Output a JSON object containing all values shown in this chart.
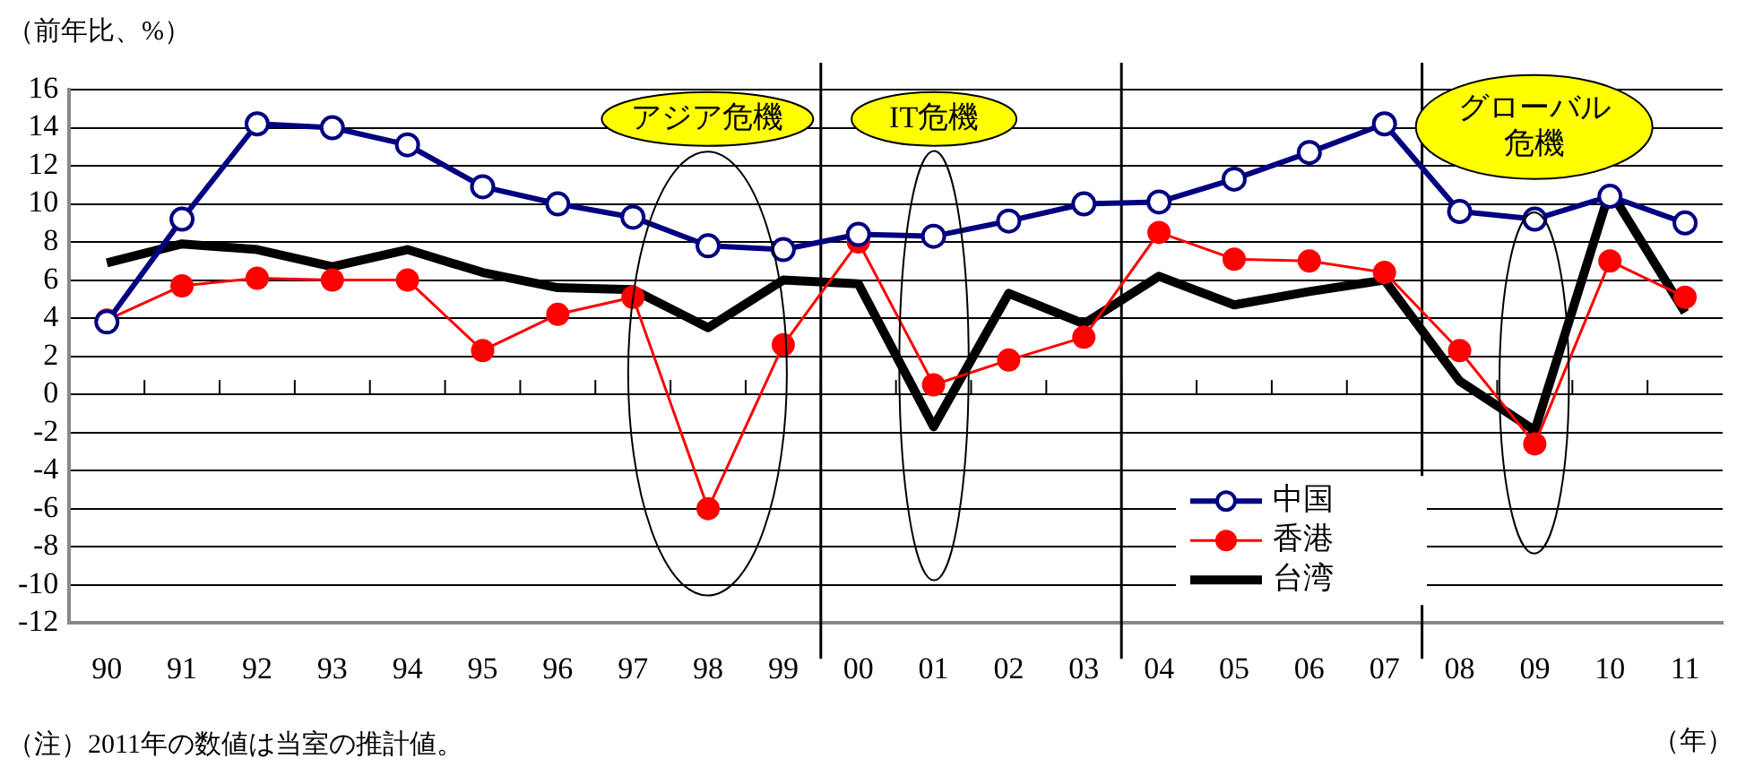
{
  "chart_data": {
    "type": "line",
    "ylabel": "（前年比、%）",
    "xlabel": "（年）",
    "x": [
      1990,
      1991,
      1992,
      1993,
      1994,
      1995,
      1996,
      1997,
      1998,
      1999,
      2000,
      2001,
      2002,
      2003,
      2004,
      2005,
      2006,
      2007,
      2008,
      2009,
      2010,
      2011
    ],
    "xlim": [
      1989.5,
      2011.5
    ],
    "xticks": [
      {
        "value": 1990,
        "label": "90"
      },
      {
        "value": 1991,
        "label": "91"
      },
      {
        "value": 1992,
        "label": "92"
      },
      {
        "value": 1993,
        "label": "93"
      },
      {
        "value": 1994,
        "label": "94"
      },
      {
        "value": 1995,
        "label": "95"
      },
      {
        "value": 1996,
        "label": "96"
      },
      {
        "value": 1997,
        "label": "97"
      },
      {
        "value": 1998,
        "label": "98"
      },
      {
        "value": 1999,
        "label": "99"
      },
      {
        "value": 2000,
        "label": "00"
      },
      {
        "value": 2001,
        "label": "01"
      },
      {
        "value": 2002,
        "label": "02"
      },
      {
        "value": 2003,
        "label": "03"
      },
      {
        "value": 2004,
        "label": "04"
      },
      {
        "value": 2005,
        "label": "05"
      },
      {
        "value": 2006,
        "label": "06"
      },
      {
        "value": 2007,
        "label": "07"
      },
      {
        "value": 2008,
        "label": "08"
      },
      {
        "value": 2009,
        "label": "09"
      },
      {
        "value": 2010,
        "label": "10"
      },
      {
        "value": 2011,
        "label": "11"
      }
    ],
    "ylim": [
      -12,
      16
    ],
    "yticks": [
      -12,
      -10,
      -8,
      -6,
      -4,
      -2,
      0,
      2,
      4,
      6,
      8,
      10,
      12,
      14,
      16
    ],
    "series": [
      {
        "name": "中国",
        "color": "#000080",
        "marker": "circle",
        "values": [
          3.8,
          9.2,
          14.2,
          14.0,
          13.1,
          10.9,
          10.0,
          9.3,
          7.8,
          7.6,
          8.4,
          8.3,
          9.1,
          10.0,
          10.1,
          11.3,
          12.7,
          14.2,
          9.6,
          9.2,
          10.4,
          9.0
        ]
      },
      {
        "name": "香港",
        "color": "#ff0000",
        "marker": "circle",
        "values": [
          3.9,
          5.7,
          6.1,
          6.0,
          6.0,
          2.3,
          4.2,
          5.1,
          -6.0,
          2.6,
          8.0,
          0.5,
          1.8,
          3.0,
          8.5,
          7.1,
          7.0,
          6.4,
          2.3,
          -2.6,
          7.0,
          5.1
        ]
      },
      {
        "name": "台湾",
        "color": "#000000",
        "marker": "none",
        "values": [
          6.9,
          7.9,
          7.6,
          6.7,
          7.6,
          6.4,
          5.6,
          5.5,
          3.5,
          6.0,
          5.8,
          -1.7,
          5.3,
          3.7,
          6.2,
          4.7,
          5.4,
          6.0,
          0.7,
          -1.9,
          10.7,
          4.3
        ]
      }
    ],
    "ref_lines": [
      {
        "axis": "x",
        "value": 1999.5,
        "color": "#000000"
      },
      {
        "axis": "x",
        "value": 2003.5,
        "color": "#000000"
      },
      {
        "axis": "x",
        "value": 2007.5,
        "color": "#000000"
      }
    ],
    "annotations": [
      "アジア危機",
      "IT危機",
      "グローバル危機",
      "（注）2011年の数値は当室の推計値。"
    ],
    "grid": "y",
    "legend": "bottom right"
  }
}
